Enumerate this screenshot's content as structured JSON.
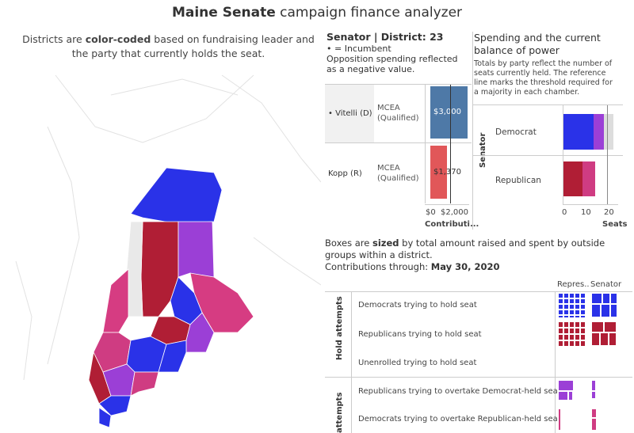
{
  "header": {
    "title_bold": "Maine Senate",
    "title_rest": " campaign finance analyzer"
  },
  "map": {
    "desc_pre": "Districts are ",
    "desc_bold": "color-coded",
    "desc_post": " based on fundraising leader and the party that currently holds the seat."
  },
  "senator_panel": {
    "heading": "Senator | District: 23",
    "incumbent_note": "• = Incumbent",
    "opp_note": "Opposition spending reflected as a negative value.",
    "rows": [
      {
        "name": "• Vitelli (D)",
        "committee": "MCEA (Qualified)",
        "amount": "$3,000",
        "value": 3000,
        "color": "#4e79a7"
      },
      {
        "name": "Kopp (R)",
        "committee": "MCEA (Qualified)",
        "amount": "$1,370",
        "value": 1370,
        "color": "#e15759"
      }
    ],
    "axis_ticks": [
      "$0",
      "$2,000"
    ],
    "axis_label": "Contributi..."
  },
  "balance_panel": {
    "title": "Spending and the current balance of power",
    "note": "Totals by party reflect the number of seats currently held. The reference line marks the threshold required for a majority in each chamber.",
    "row_header": "Senator",
    "rows": [
      {
        "party": "Democrat",
        "seats": 21
      },
      {
        "party": "Republican",
        "seats": 14
      }
    ],
    "axis_ticks": [
      "0",
      "10",
      "20"
    ],
    "axis_label": "Seats",
    "majority_threshold": 18
  },
  "treemap": {
    "desc_pre": "Boxes are ",
    "desc_bold": "sized",
    "desc_post": " by total amount raised and spent by outside groups within a district.",
    "through_label": "Contributions through: ",
    "through_date": "May 30, 2020",
    "col_headers": [
      "Repres...",
      "Senator"
    ],
    "group1": "Hold attempts",
    "group2": "attempts",
    "rows": [
      "Democrats trying to hold seat",
      "Republicans trying to hold seat",
      "Unenrolled trying to hold seat",
      "Republicans trying to overtake Democrat-held seat",
      "Democrats trying to overtake Republican-held seat"
    ]
  },
  "colors": {
    "dem": "#2a32e8",
    "rep": "#b01e35",
    "purple": "#9b3fd6",
    "pink": "#cf3c82",
    "light_red": "#e15759",
    "steel": "#4e79a7"
  }
}
